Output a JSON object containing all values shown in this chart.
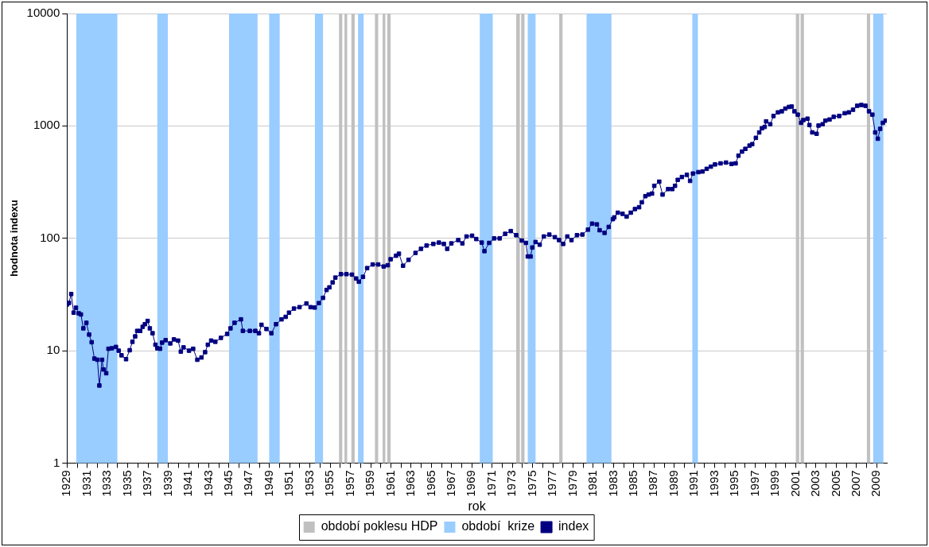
{
  "chart_data": {
    "type": "line",
    "xlabel": "rok",
    "ylabel": "hodnota indexu",
    "log": "y",
    "grid": "y",
    "legend": "bottom",
    "marker": "square",
    "line_style": "solid",
    "xlim": [
      1929,
      2010
    ],
    "ylim": [
      1,
      10000
    ],
    "yticks": [
      1,
      10,
      100,
      1000,
      10000
    ],
    "xticks": [
      1929,
      {
        "value": 1930,
        "label": null
      },
      1931,
      {
        "value": 1932,
        "label": null
      },
      1933,
      {
        "value": 1934,
        "label": null
      },
      1935,
      {
        "value": 1936,
        "label": null
      },
      1937,
      {
        "value": 1938,
        "label": null
      },
      1939,
      {
        "value": 1940,
        "label": null
      },
      1941,
      {
        "value": 1942,
        "label": null
      },
      1943,
      {
        "value": 1944,
        "label": null
      },
      1945,
      {
        "value": 1946,
        "label": null
      },
      1947,
      {
        "value": 1948,
        "label": null
      },
      1949,
      {
        "value": 1950,
        "label": null
      },
      1951,
      {
        "value": 1952,
        "label": null
      },
      1953,
      {
        "value": 1954,
        "label": null
      },
      1955,
      {
        "value": 1956,
        "label": null
      },
      1957,
      {
        "value": 1958,
        "label": null
      },
      1959,
      {
        "value": 1960,
        "label": null
      },
      1961,
      {
        "value": 1962,
        "label": null
      },
      1963,
      {
        "value": 1964,
        "label": null
      },
      1965,
      {
        "value": 1966,
        "label": null
      },
      1967,
      {
        "value": 1968,
        "label": null
      },
      1969,
      {
        "value": 1970,
        "label": null
      },
      1971,
      {
        "value": 1972,
        "label": null
      },
      1973,
      {
        "value": 1974,
        "label": null
      },
      1975,
      {
        "value": 1976,
        "label": null
      },
      1977,
      {
        "value": 1978,
        "label": null
      },
      1979,
      {
        "value": 1980,
        "label": null
      },
      1981,
      {
        "value": 1982,
        "label": null
      },
      1983,
      {
        "value": 1984,
        "label": null
      },
      1985,
      {
        "value": 1986,
        "label": null
      },
      1987,
      {
        "value": 1988,
        "label": null
      },
      1989,
      {
        "value": 1990,
        "label": null
      },
      1991,
      {
        "value": 1992,
        "label": null
      },
      1993,
      {
        "value": 1994,
        "label": null
      },
      1995,
      {
        "value": 1996,
        "label": null
      },
      1997,
      {
        "value": 1998,
        "label": null
      },
      1999,
      {
        "value": 2000,
        "label": null
      },
      2001,
      {
        "value": 2002,
        "label": null
      },
      2003,
      {
        "value": 2004,
        "label": null
      },
      2005,
      {
        "value": 2006,
        "label": null
      },
      2007,
      {
        "value": 2008,
        "label": null
      },
      2009
    ],
    "bands": [
      {
        "axis": "x",
        "from": 1955.87,
        "to": 1956.19,
        "label": "období poklesu HDP",
        "color": "#c0c0c0"
      },
      {
        "axis": "x",
        "from": 1929.92,
        "to": 1933.97,
        "label": "období  krize",
        "color": "#99ccff"
      },
      {
        "axis": "x",
        "from": 1937.92,
        "to": 1938.96,
        "color": "#99ccff"
      },
      {
        "axis": "x",
        "from": 1945.01,
        "to": 1947.82,
        "color": "#99ccff"
      },
      {
        "axis": "x",
        "from": 1948.97,
        "to": 1950.01,
        "color": "#99ccff"
      },
      {
        "axis": "x",
        "from": 1953.49,
        "to": 1954.29,
        "color": "#99ccff"
      },
      {
        "axis": "x",
        "from": 1956.41,
        "to": 1956.68,
        "color": "#c0c0c0"
      },
      {
        "axis": "x",
        "from": 1957.09,
        "to": 1957.42,
        "color": "#c0c0c0"
      },
      {
        "axis": "x",
        "from": 1957.75,
        "to": 1958.3,
        "color": "#99ccff"
      },
      {
        "axis": "x",
        "from": 1959.42,
        "to": 1959.74,
        "color": "#c0c0c0"
      },
      {
        "axis": "x",
        "from": 1960.18,
        "to": 1960.45,
        "color": "#c0c0c0"
      },
      {
        "axis": "x",
        "from": 1960.64,
        "to": 1960.97,
        "color": "#c0c0c0"
      },
      {
        "axis": "x",
        "from": 1969.78,
        "to": 1971.06,
        "color": "#99ccff"
      },
      {
        "axis": "x",
        "from": 1973.38,
        "to": 1973.74,
        "color": "#c0c0c0"
      },
      {
        "axis": "x",
        "from": 1973.87,
        "to": 1974.2,
        "color": "#c0c0c0"
      },
      {
        "axis": "x",
        "from": 1974.52,
        "to": 1975.29,
        "color": "#99ccff"
      },
      {
        "axis": "x",
        "from": 1977.63,
        "to": 1977.96,
        "color": "#c0c0c0"
      },
      {
        "axis": "x",
        "from": 1980.33,
        "to": 1982.79,
        "color": "#99ccff"
      },
      {
        "axis": "x",
        "from": 1990.78,
        "to": 1991.33,
        "color": "#99ccff"
      },
      {
        "axis": "x",
        "from": 2001.01,
        "to": 2001.34,
        "color": "#c0c0c0"
      },
      {
        "axis": "x",
        "from": 2001.48,
        "to": 2001.81,
        "color": "#c0c0c0"
      },
      {
        "axis": "x",
        "from": 2008.03,
        "to": 2008.35,
        "color": "#c0c0c0"
      },
      {
        "axis": "x",
        "from": 2008.65,
        "to": 2009.66,
        "color": "#99ccff"
      }
    ],
    "series": [
      {
        "name": "index",
        "color": "#000080",
        "x": [
          1929.0,
          1929.19,
          1929.41,
          1929.65,
          1929.88,
          1930.15,
          1930.37,
          1930.61,
          1930.91,
          1931.18,
          1931.43,
          1931.7,
          1932.0,
          1932.19,
          1932.46,
          1932.6,
          1932.87,
          1933.09,
          1933.42,
          1933.83,
          1934.1,
          1934.38,
          1934.83,
          1935.19,
          1935.46,
          1935.73,
          1935.93,
          1936.23,
          1936.47,
          1936.69,
          1936.96,
          1937.18,
          1937.45,
          1937.73,
          1937.92,
          1938.19,
          1938.39,
          1938.74,
          1939.2,
          1939.56,
          1939.97,
          1940.24,
          1940.51,
          1941.05,
          1941.46,
          1941.87,
          1942.28,
          1942.64,
          1942.91,
          1943.24,
          1943.65,
          1944.2,
          1944.82,
          1945.15,
          1945.55,
          1946.18,
          1946.37,
          1947.06,
          1947.6,
          1947.96,
          1948.21,
          1948.7,
          1949.19,
          1949.65,
          1950.19,
          1950.6,
          1950.93,
          1951.42,
          1951.97,
          1952.65,
          1953.06,
          1953.47,
          1953.88,
          1954.29,
          1954.64,
          1954.92,
          1955.24,
          1955.51,
          1956.06,
          1956.6,
          1957.15,
          1957.56,
          1957.83,
          1958.24,
          1958.65,
          1959.2,
          1959.74,
          1960.28,
          1960.69,
          1960.97,
          1961.51,
          1961.79,
          1962.2,
          1962.74,
          1963.43,
          1963.97,
          1964.52,
          1965.19,
          1965.74,
          1966.23,
          1966.56,
          1966.97,
          1967.65,
          1968.06,
          1968.47,
          1969.02,
          1969.43,
          1969.97,
          1970.24,
          1970.71,
          1971.2,
          1971.74,
          1972.29,
          1972.84,
          1973.38,
          1973.93,
          1974.34,
          1974.52,
          1974.8,
          1974.97,
          1975.29,
          1975.7,
          1976.11,
          1976.65,
          1977.2,
          1977.61,
          1978.02,
          1978.43,
          1978.84,
          1979.38,
          1979.92,
          1980.47,
          1980.88,
          1981.35,
          1981.62,
          1982.11,
          1982.52,
          1982.93,
          1983.07,
          1983.42,
          1983.89,
          1984.29,
          1984.7,
          1985.11,
          1985.52,
          1985.79,
          1986.14,
          1986.47,
          1986.8,
          1987.02,
          1987.51,
          1987.84,
          1988.39,
          1988.8,
          1989.07,
          1989.34,
          1989.75,
          1990.24,
          1990.56,
          1990.84,
          1991.38,
          1991.79,
          1992.2,
          1992.61,
          1993.02,
          1993.57,
          1994.11,
          1994.65,
          1995.06,
          1995.34,
          1995.69,
          1996.02,
          1996.43,
          1996.7,
          1997.06,
          1997.39,
          1997.66,
          1997.93,
          1998.07,
          1998.48,
          1998.8,
          1999.24,
          1999.62,
          1999.97,
          2000.33,
          2000.6,
          2000.87,
          2001.2,
          2001.53,
          2001.75,
          2002.16,
          2002.35,
          2002.63,
          2003.06,
          2003.25,
          2003.66,
          2003.93,
          2004.34,
          2004.75,
          2005.29,
          2005.84,
          2006.25,
          2006.66,
          2007.07,
          2007.48,
          2007.89,
          2008.24,
          2008.57,
          2008.85,
          2009.11,
          2009.34,
          2009.61,
          2009.88
        ],
        "values": [
          25.8,
          26.6,
          31.9,
          21.8,
          24.1,
          21.5,
          21,
          15.8,
          17.7,
          13.9,
          11.9,
          8.5,
          8.3,
          4.9,
          8.3,
          6.8,
          6.3,
          10.4,
          10.5,
          10.8,
          10,
          9.1,
          8.4,
          10.1,
          12,
          13.4,
          15,
          15,
          16.3,
          17.2,
          18.4,
          15.8,
          14.3,
          11.3,
          10.5,
          10.4,
          11.8,
          12.4,
          11.6,
          12.6,
          12.3,
          9.8,
          10.7,
          10,
          10.4,
          8.3,
          8.7,
          9.7,
          11.3,
          12.3,
          12,
          13,
          14.1,
          15.8,
          17.7,
          19,
          15,
          15,
          15,
          14.3,
          17,
          15.6,
          14.3,
          17.2,
          19,
          20,
          21.8,
          23.7,
          24.4,
          26.3,
          24.4,
          24.2,
          26.5,
          29.5,
          34.7,
          36.6,
          40.5,
          44.7,
          48,
          48,
          47.5,
          43.9,
          41.1,
          45.4,
          54.3,
          58.5,
          58.5,
          56.1,
          57.6,
          65.1,
          70,
          72.9,
          57,
          64.3,
          74.1,
          80.6,
          86.2,
          89.1,
          91.6,
          89.1,
          80.6,
          90.1,
          96.4,
          90.1,
          103.8,
          105.5,
          98.5,
          91.6,
          76.9,
          91,
          99.8,
          99.8,
          109.6,
          115.9,
          106.6,
          95.5,
          91,
          68.9,
          68.9,
          82.8,
          92.7,
          87.7,
          103.8,
          107.9,
          102.3,
          96.4,
          89.1,
          103.8,
          96.4,
          106.6,
          107.9,
          119.4,
          135,
          133,
          118,
          111.7,
          126.2,
          148,
          153.6,
          169,
          165,
          156,
          169,
          182,
          189,
          209,
          237,
          245,
          250,
          293,
          319,
          245,
          274,
          274,
          293,
          331,
          351,
          367,
          324,
          377,
          388,
          393,
          415,
          434,
          454,
          464,
          472,
          459,
          464,
          543,
          591,
          625,
          668,
          688,
          783,
          875,
          952,
          980,
          1097,
          1035,
          1225,
          1320,
          1349,
          1426,
          1475,
          1487,
          1349,
          1260,
          1065,
          1127,
          1160,
          1018,
          875,
          851,
          1007,
          1035,
          1114,
          1140,
          1205,
          1225,
          1297,
          1320,
          1393,
          1510,
          1535,
          1510,
          1349,
          1260,
          875,
          769,
          942,
          1065,
          1114
        ]
      }
    ]
  }
}
